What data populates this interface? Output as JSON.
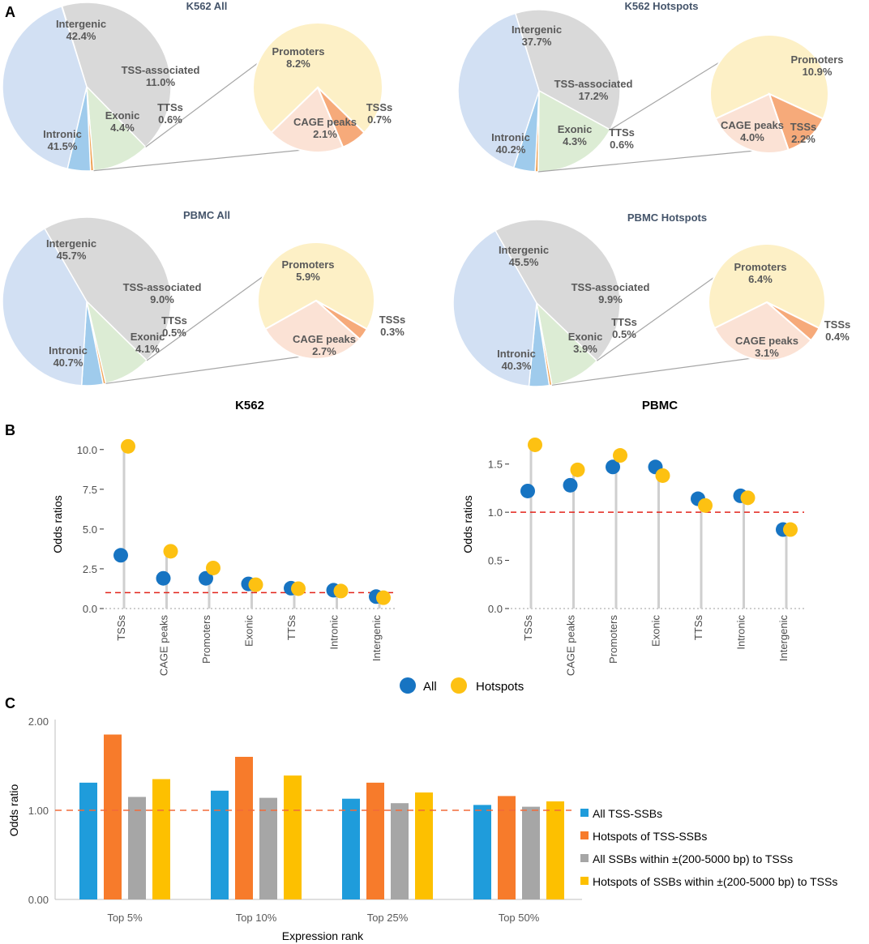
{
  "panel_labels": {
    "a": "A",
    "b": "B",
    "c": "C"
  },
  "colors": {
    "intergenic": "#d9d9d9",
    "tss_assoc": "#dcecd4",
    "exonic": "#9fcbec",
    "tts": "#f0a55a",
    "intronic": "#d2e0f3",
    "promoters": "#fdf0c6",
    "cage": "#fbe2d5",
    "tss_sub": "#f6aa7a",
    "pie_label": "#595959",
    "pie_title": "#44546a",
    "lollipop_all": "#1774c2",
    "lollipop_hot": "#fdc112",
    "stem": "#cfcfcf",
    "refline": "#e2231a",
    "bar_all": "#1f9cdb",
    "bar_hot": "#f77b2b",
    "bar_within": "#a6a6a6",
    "bar_hot_within": "#fdc000",
    "bar_ref": "#f26b3a"
  },
  "chart_data": [
    {
      "type": "pie",
      "title": "K562 All",
      "slices": [
        {
          "name": "Intergenic",
          "value": 42.4,
          "label": "42.4%"
        },
        {
          "name": "TSS-associated",
          "value": 11.0,
          "label": "11.0%"
        },
        {
          "name": "TTSs",
          "value": 0.6,
          "label": "0.6%"
        },
        {
          "name": "Exonic",
          "value": 4.4,
          "label": "4.4%"
        },
        {
          "name": "Intronic",
          "value": 41.5,
          "label": "41.5%"
        }
      ],
      "breakdown_of": "TSS-associated",
      "breakdown": [
        {
          "name": "Promoters",
          "value": 8.2,
          "label": "8.2%"
        },
        {
          "name": "TSSs",
          "value": 0.7,
          "label": "0.7%"
        },
        {
          "name": "CAGE peaks",
          "value": 2.1,
          "label": "2.1%"
        }
      ]
    },
    {
      "type": "pie",
      "title": "K562 Hotspots",
      "slices": [
        {
          "name": "Intergenic",
          "value": 37.7,
          "label": "37.7%"
        },
        {
          "name": "TSS-associated",
          "value": 17.2,
          "label": "17.2%"
        },
        {
          "name": "TTSs",
          "value": 0.6,
          "label": "0.6%"
        },
        {
          "name": "Exonic",
          "value": 4.3,
          "label": "4.3%"
        },
        {
          "name": "Intronic",
          "value": 40.2,
          "label": "40.2%"
        }
      ],
      "breakdown_of": "TSS-associated",
      "breakdown": [
        {
          "name": "Promoters",
          "value": 10.9,
          "label": "10.9%"
        },
        {
          "name": "TSSs",
          "value": 2.2,
          "label": "2.2%"
        },
        {
          "name": "CAGE peaks",
          "value": 4.0,
          "label": "4.0%"
        }
      ]
    },
    {
      "type": "pie",
      "title": "PBMC All",
      "slices": [
        {
          "name": "Intergenic",
          "value": 45.7,
          "label": "45.7%"
        },
        {
          "name": "TSS-associated",
          "value": 9.0,
          "label": "9.0%"
        },
        {
          "name": "TTSs",
          "value": 0.5,
          "label": "0.5%"
        },
        {
          "name": "Exonic",
          "value": 4.1,
          "label": "4.1%"
        },
        {
          "name": "Intronic",
          "value": 40.7,
          "label": "40.7%"
        }
      ],
      "breakdown_of": "TSS-associated",
      "breakdown": [
        {
          "name": "Promoters",
          "value": 5.9,
          "label": "5.9%"
        },
        {
          "name": "TSSs",
          "value": 0.3,
          "label": "0.3%"
        },
        {
          "name": "CAGE peaks",
          "value": 2.7,
          "label": "2.7%"
        }
      ]
    },
    {
      "type": "pie",
      "title": "PBMC Hotspots",
      "slices": [
        {
          "name": "Intergenic",
          "value": 45.5,
          "label": "45.5%"
        },
        {
          "name": "TSS-associated",
          "value": 9.9,
          "label": "9.9%"
        },
        {
          "name": "TTSs",
          "value": 0.5,
          "label": "0.5%"
        },
        {
          "name": "Exonic",
          "value": 3.9,
          "label": "3.9%"
        },
        {
          "name": "Intronic",
          "value": 40.3,
          "label": "40.3%"
        }
      ],
      "breakdown_of": "TSS-associated",
      "breakdown": [
        {
          "name": "Promoters",
          "value": 6.4,
          "label": "6.4%"
        },
        {
          "name": "TSSs",
          "value": 0.4,
          "label": "0.4%"
        },
        {
          "name": "CAGE peaks",
          "value": 3.1,
          "label": "3.1%"
        }
      ]
    },
    {
      "type": "scatter",
      "title": "K562",
      "categories": [
        "TSSs",
        "CAGE peaks",
        "Promoters",
        "Exonic",
        "TTSs",
        "Intronic",
        "Intergenic"
      ],
      "series": [
        {
          "name": "All",
          "values": [
            3.35,
            1.9,
            1.9,
            1.55,
            1.28,
            1.15,
            0.75
          ]
        },
        {
          "name": "Hotspots",
          "values": [
            10.2,
            3.6,
            2.55,
            1.5,
            1.25,
            1.1,
            0.68
          ]
        }
      ],
      "ylabel": "Odds ratios",
      "ylim": [
        0,
        10.6
      ],
      "yticks": [
        "0.0",
        "2.5",
        "5.0",
        "7.5",
        "10.0"
      ],
      "reference_line": 1.0
    },
    {
      "type": "scatter",
      "title": "PBMC",
      "categories": [
        "TSSs",
        "CAGE peaks",
        "Promoters",
        "Exonic",
        "TTSs",
        "Intronic",
        "Intergenic"
      ],
      "series": [
        {
          "name": "All",
          "values": [
            1.22,
            1.28,
            1.47,
            1.47,
            1.14,
            1.17,
            0.82
          ]
        },
        {
          "name": "Hotspots",
          "values": [
            1.7,
            1.44,
            1.59,
            1.38,
            1.07,
            1.15,
            0.82
          ]
        }
      ],
      "ylabel": "Odds ratios",
      "ylim": [
        0,
        1.75
      ],
      "yticks": [
        "0.0",
        "0.5",
        "1.0",
        "1.5"
      ],
      "reference_line": 1.0
    },
    {
      "type": "bar",
      "categories": [
        "Top 5%",
        "Top 10%",
        "Top 25%",
        "Top 50%"
      ],
      "series": [
        {
          "name": "All TSS-SSBs",
          "values": [
            1.31,
            1.22,
            1.13,
            1.06
          ]
        },
        {
          "name": "Hotspots of TSS-SSBs",
          "values": [
            1.85,
            1.6,
            1.31,
            1.16
          ]
        },
        {
          "name": "All SSBs within ±(200-5000 bp) to TSSs",
          "values": [
            1.15,
            1.14,
            1.08,
            1.04
          ]
        },
        {
          "name": "Hotspots of SSBs within ±(200-5000 bp) to TSSs",
          "values": [
            1.35,
            1.39,
            1.2,
            1.1
          ]
        }
      ],
      "xlabel": "Expression rank",
      "ylabel": "Odds ratio",
      "ylim": [
        0,
        2.0
      ],
      "yticks": [
        "0.00",
        "1.00",
        "2.00"
      ],
      "reference_line": 1.0
    }
  ],
  "lollipop_legend": {
    "all": "All",
    "hot": "Hotspots"
  }
}
